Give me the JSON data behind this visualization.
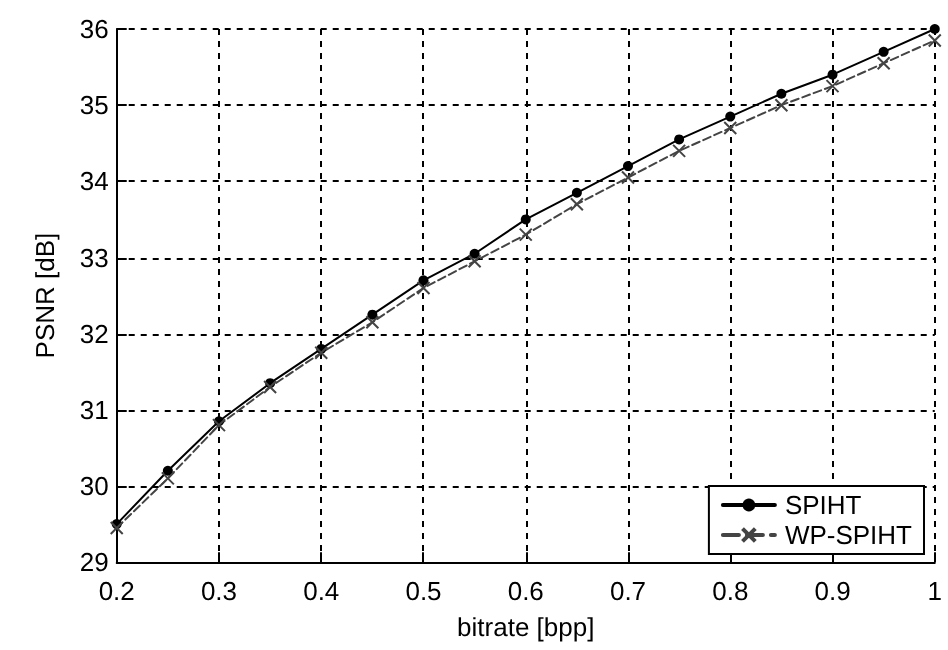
{
  "chart_data": {
    "type": "line",
    "xlabel": "bitrate [bpp]",
    "ylabel": "PSNR [dB]",
    "x": [
      0.2,
      0.25,
      0.3,
      0.35,
      0.4,
      0.45,
      0.5,
      0.55,
      0.6,
      0.65,
      0.7,
      0.75,
      0.8,
      0.85,
      0.9,
      0.95,
      1.0
    ],
    "series": [
      {
        "name": "SPIHT",
        "color": "#000000",
        "marker": "circle",
        "line_style": "solid",
        "values": [
          29.5,
          30.2,
          30.85,
          31.35,
          31.8,
          32.25,
          32.7,
          33.05,
          33.5,
          33.85,
          34.2,
          34.55,
          34.85,
          35.15,
          35.4,
          35.7,
          36.0
        ]
      },
      {
        "name": "WP-SPIHT",
        "color": "#444444",
        "marker": "cross",
        "line_style": "dashed",
        "values": [
          29.45,
          30.1,
          30.8,
          31.3,
          31.75,
          32.15,
          32.6,
          32.95,
          33.3,
          33.7,
          34.05,
          34.4,
          34.7,
          35.0,
          35.25,
          35.55,
          35.85
        ]
      }
    ],
    "xlim": [
      0.2,
      1
    ],
    "xticks": [
      0.2,
      0.3,
      0.4,
      0.5,
      0.6,
      0.7,
      0.8,
      0.9,
      1
    ],
    "ylim": [
      29,
      36
    ],
    "yticks": [
      29,
      30,
      31,
      32,
      33,
      34,
      35,
      36
    ],
    "grid": true,
    "legend": "bottom right"
  }
}
